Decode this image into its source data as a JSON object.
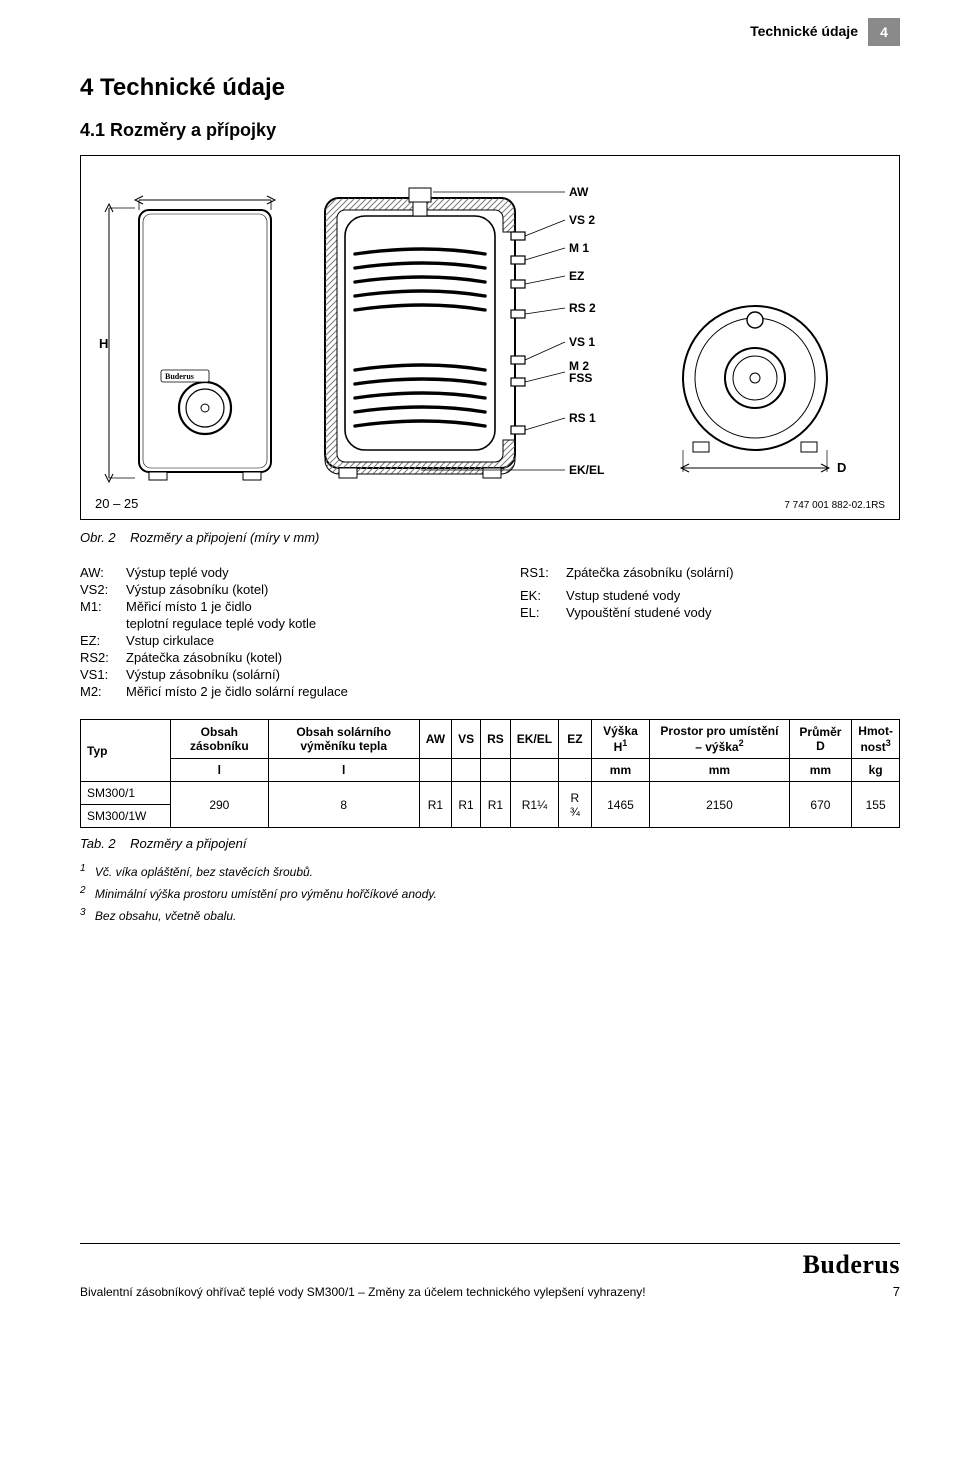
{
  "header": {
    "title": "Technické údaje",
    "chapter_num": "4"
  },
  "section": {
    "num_title": "4   Technické údaje",
    "sub_title": "4.1   Rozměry a přípojky"
  },
  "figure": {
    "dim_range": "20 – 25",
    "H_label": "H",
    "D_label": "D",
    "right_labels": [
      "AW",
      "VS 2",
      "M 1",
      "EZ",
      "RS 2",
      "VS 1",
      "M 2\nFSS",
      "RS 1",
      "EK/EL"
    ],
    "id_text": "7 747 001 882-02.1RS",
    "brand_inline": "Buderus",
    "colors": {
      "stroke": "#000000",
      "hatch": "#7a7a7a",
      "coil": "#9a9a9a"
    }
  },
  "fig_caption": {
    "lead": "Obr. 2",
    "text": "Rozměry a připojení (míry v mm)"
  },
  "legend_left": [
    {
      "k": "AW:",
      "v": "Výstup teplé vody"
    },
    {
      "k": "VS2:",
      "v": "Výstup zásobníku (kotel)"
    },
    {
      "k": "M1:",
      "v": "Měřicí místo 1 je čidlo"
    },
    {
      "k": "",
      "v": "teplotní regulace teplé vody kotle"
    },
    {
      "k": "EZ:",
      "v": "Vstup cirkulace"
    },
    {
      "k": "RS2:",
      "v": "Zpátečka zásobníku (kotel)"
    },
    {
      "k": "VS1:",
      "v": "Výstup zásobníku (solární)"
    },
    {
      "k": "M2:",
      "v": "Měřicí místo 2 je čidlo solární regulace"
    }
  ],
  "legend_right": [
    {
      "k": "RS1:",
      "v": "Zpátečka zásobníku (solární)"
    },
    {
      "k": "",
      "v": ""
    },
    {
      "k": "",
      "v": ""
    },
    {
      "k": "",
      "v": ""
    },
    {
      "k": "EK:",
      "v": "Vstup studené vody"
    },
    {
      "k": "EL:",
      "v": "Vypouštění studené vody"
    }
  ],
  "table": {
    "headers": [
      "Typ",
      "Obsah zásobníku",
      "Obsah solárního výměníku tepla",
      "AW",
      "VS",
      "RS",
      "EK/EL",
      "EZ",
      "Výška H¹",
      "Prostor pro umístění – výška²",
      "Průměr D",
      "Hmot­nost³"
    ],
    "units": [
      "",
      "l",
      "l",
      "",
      "",
      "",
      "",
      "",
      "mm",
      "mm",
      "mm",
      "kg"
    ],
    "rows": [
      {
        "typ": "SM300/1"
      },
      {
        "typ": "SM300/1W"
      }
    ],
    "merged_values": {
      "obsah_zas": "290",
      "obsah_sol": "8",
      "aw": "R1",
      "vs": "R1",
      "rs": "R1",
      "ekel": "R1¼",
      "ez": "R ¾",
      "vyska_h": "1465",
      "prostor": "2150",
      "prumer": "670",
      "hmot": "155"
    }
  },
  "table_caption": {
    "lead": "Tab. 2",
    "text": "Rozměry a připojení"
  },
  "footnotes": [
    {
      "n": "1",
      "t": "Vč. víka opláštění, bez stavěcích šroubů."
    },
    {
      "n": "2",
      "t": "Minimální výška prostoru umístění pro výměnu hořčíkové anody."
    },
    {
      "n": "3",
      "t": "Bez obsahu, včetně obalu."
    }
  ],
  "footer": {
    "line": "Bivalentní zásobníkový ohřívač teplé vody SM300/1 – Změny za účelem technického vylepšení vyhrazeny!",
    "brand": "Buderus",
    "page": "7"
  }
}
